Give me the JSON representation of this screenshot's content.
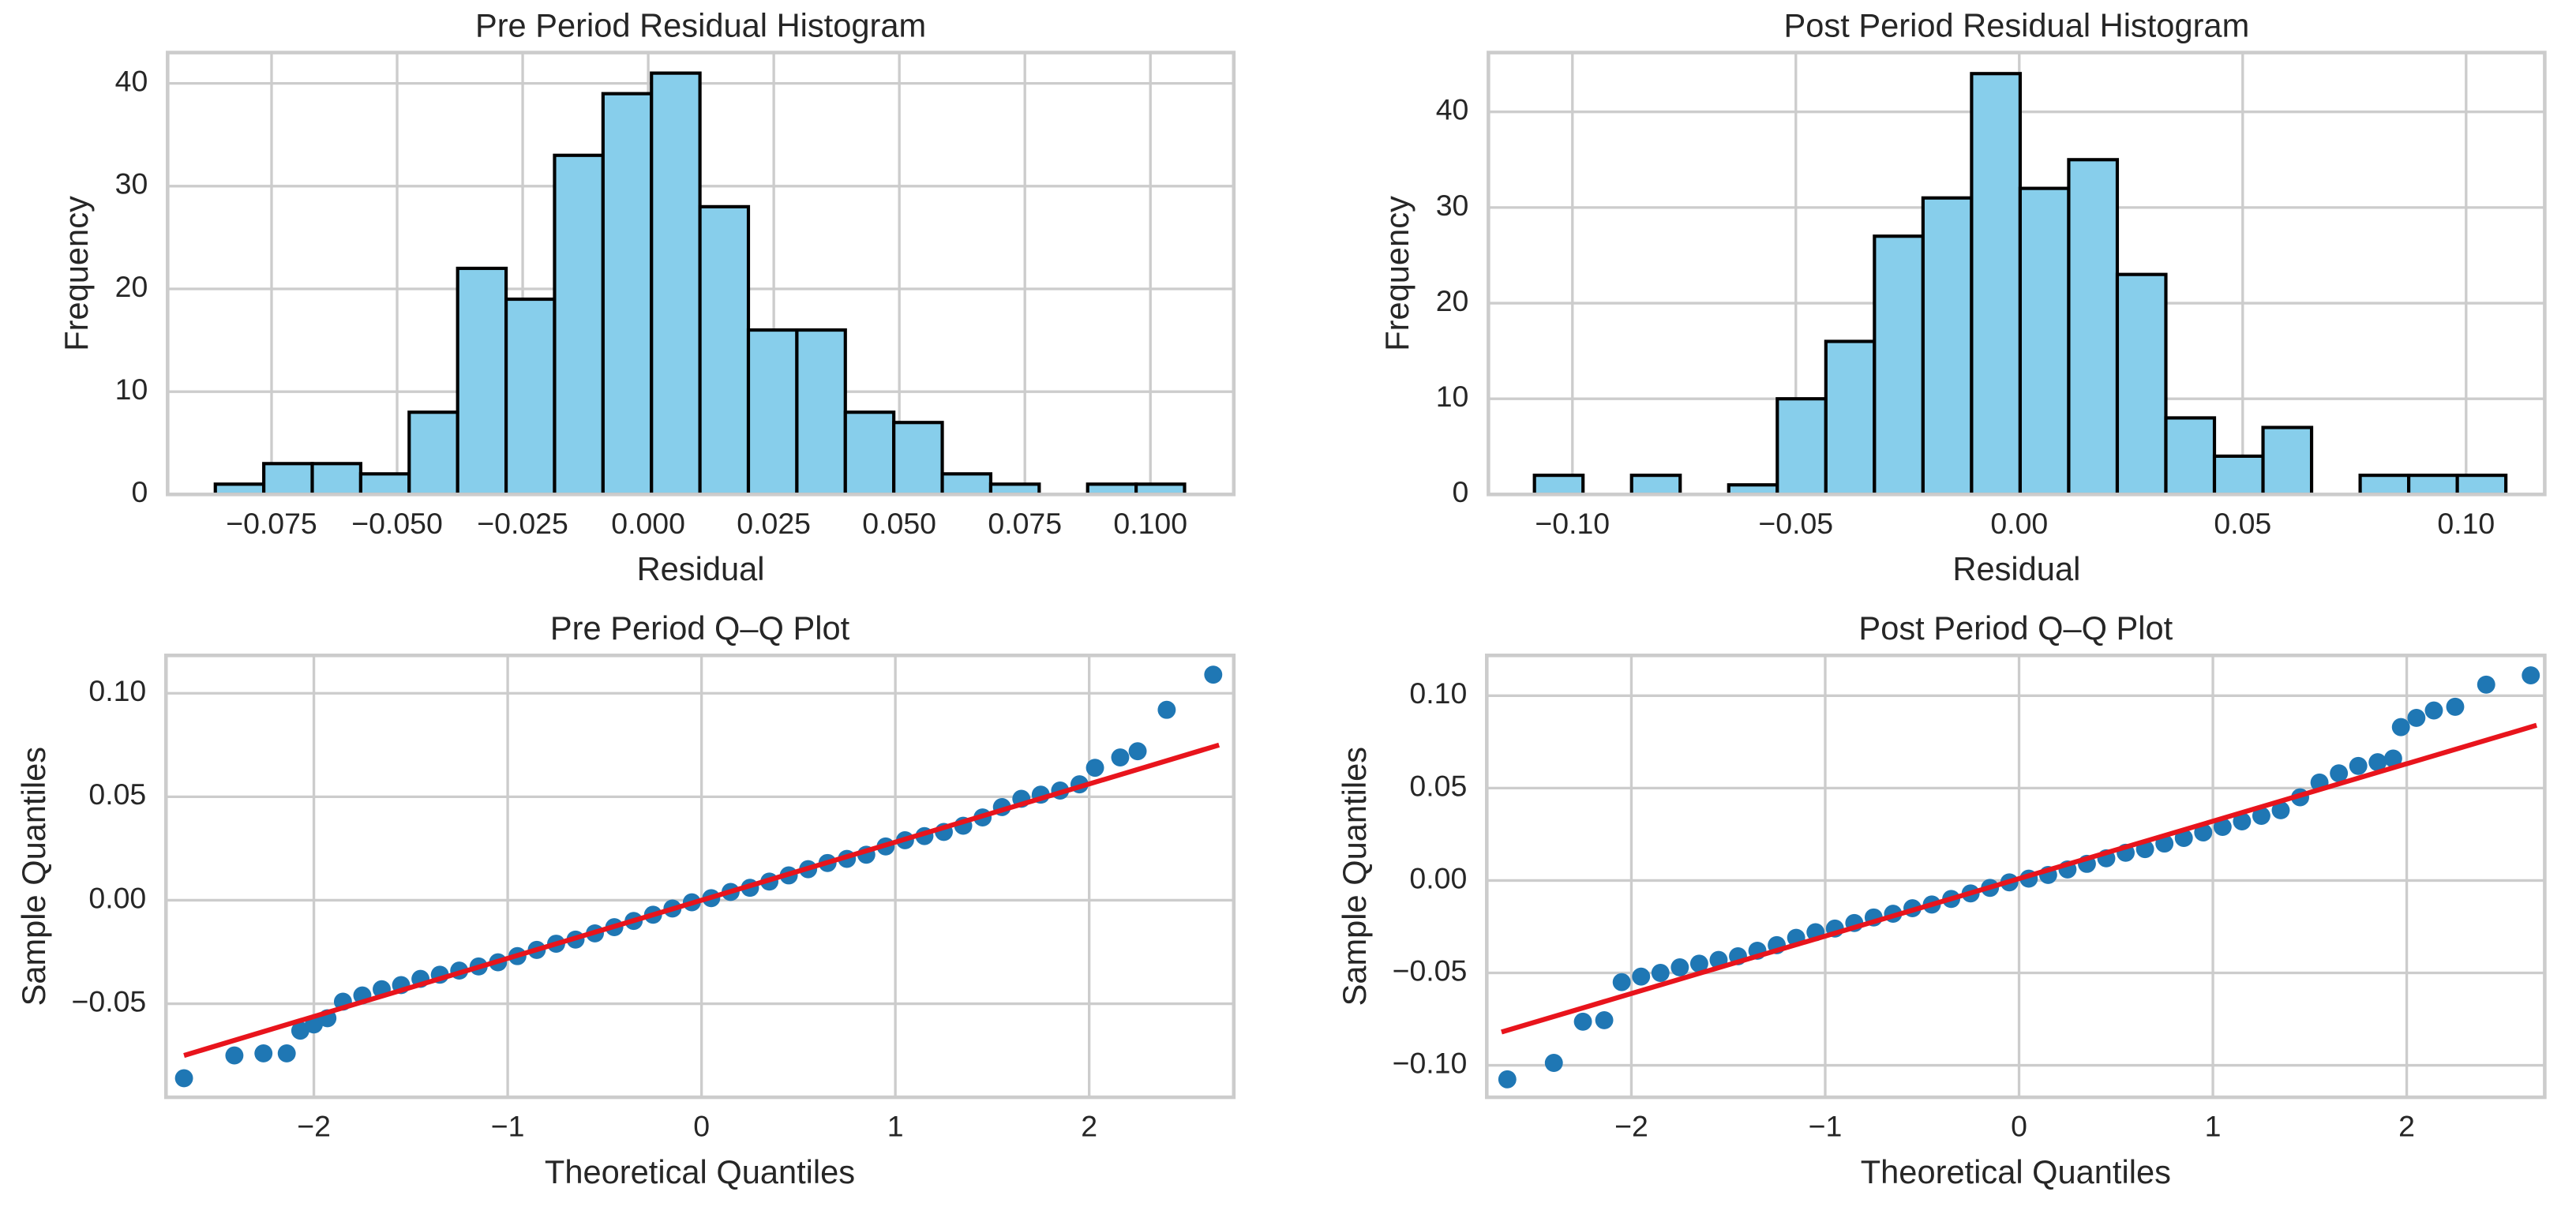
{
  "chart_data": [
    {
      "type": "histogram",
      "title": "Pre Period Residual Histogram",
      "x_label": "Residual",
      "y_label": "Frequency",
      "color": "#87ceeb",
      "edgecolor": "#000000",
      "bins": [
        -0.0862,
        -0.07655,
        -0.0669,
        -0.05725,
        -0.0476,
        -0.03795,
        -0.0283,
        -0.01865,
        -0.009,
        0.00065,
        0.0103,
        0.01995,
        0.0296,
        0.03925,
        0.0489,
        0.05855,
        0.0682,
        0.07785,
        0.0875,
        0.09715,
        0.1068
      ],
      "values": [
        1,
        3,
        3,
        2,
        8,
        22,
        19,
        33,
        39,
        41,
        28,
        16,
        16,
        8,
        7,
        2,
        1,
        0,
        1,
        1
      ],
      "xlim": [
        -0.0957,
        0.1166
      ],
      "ylim": [
        0,
        43
      ],
      "xticks": [
        {
          "value": -0.075,
          "label": "−0.075"
        },
        {
          "value": -0.05,
          "label": "−0.050"
        },
        {
          "value": -0.025,
          "label": "−0.025"
        },
        {
          "value": 0,
          "label": "0.000"
        },
        {
          "value": 0.025,
          "label": "0.025"
        },
        {
          "value": 0.05,
          "label": "0.050"
        },
        {
          "value": 0.075,
          "label": "0.075"
        },
        {
          "value": 0.1,
          "label": "0.100"
        }
      ],
      "yticks": [
        0,
        10,
        20,
        30,
        40
      ],
      "grid": true
    },
    {
      "type": "histogram",
      "title": "Post Period Residual Histogram",
      "x_label": "Residual",
      "y_label": "Frequency",
      "color": "#87ceeb",
      "edgecolor": "#000000",
      "bins": [
        -0.1085,
        -0.09763,
        -0.08676,
        -0.07589,
        -0.06502,
        -0.05415,
        -0.04328,
        -0.03241,
        -0.02154,
        -0.01067,
        0.0002,
        0.01107,
        0.02194,
        0.03281,
        0.04368,
        0.05455,
        0.06542,
        0.07629,
        0.08716,
        0.09803,
        0.1089
      ],
      "values": [
        2,
        0,
        2,
        0,
        1,
        10,
        16,
        27,
        31,
        44,
        32,
        35,
        23,
        8,
        4,
        7,
        0,
        2,
        2,
        2
      ],
      "xlim": [
        -0.1188,
        0.1176
      ],
      "ylim": [
        0,
        46.2
      ],
      "xticks": [
        {
          "value": -0.1,
          "label": "−0.10"
        },
        {
          "value": -0.05,
          "label": "−0.05"
        },
        {
          "value": 0,
          "label": "0.00"
        },
        {
          "value": 0.05,
          "label": "0.05"
        },
        {
          "value": 0.1,
          "label": "0.10"
        }
      ],
      "yticks": [
        0,
        10,
        20,
        30,
        40
      ],
      "grid": true
    },
    {
      "type": "scatter",
      "title": "Pre Period Q–Q Plot",
      "x_label": "Theoretical Quantiles",
      "y_label": "Sample Quantiles",
      "color": "#1f77b4",
      "x": [
        -2.67,
        -2.41,
        -2.26,
        -2.14,
        -2.07,
        -2.0,
        -1.93,
        -1.85,
        -1.75,
        -1.65,
        -1.55,
        -1.45,
        -1.35,
        -1.25,
        -1.15,
        -1.05,
        -0.95,
        -0.85,
        -0.75,
        -0.65,
        -0.55,
        -0.45,
        -0.35,
        -0.25,
        -0.15,
        -0.05,
        0.05,
        0.15,
        0.25,
        0.35,
        0.45,
        0.55,
        0.65,
        0.75,
        0.85,
        0.95,
        1.05,
        1.15,
        1.25,
        1.35,
        1.45,
        1.55,
        1.65,
        1.75,
        1.85,
        1.95,
        2.03,
        2.16,
        2.25,
        2.4,
        2.64
      ],
      "values": [
        -0.086,
        -0.075,
        -0.074,
        -0.074,
        -0.063,
        -0.06,
        -0.057,
        -0.049,
        -0.046,
        -0.043,
        -0.041,
        -0.038,
        -0.036,
        -0.034,
        -0.032,
        -0.03,
        -0.027,
        -0.024,
        -0.021,
        -0.019,
        -0.016,
        -0.013,
        -0.01,
        -0.007,
        -0.004,
        -0.001,
        0.001,
        0.004,
        0.006,
        0.009,
        0.012,
        0.015,
        0.018,
        0.02,
        0.022,
        0.026,
        0.029,
        0.031,
        0.033,
        0.036,
        0.04,
        0.045,
        0.049,
        0.051,
        0.053,
        0.056,
        0.064,
        0.069,
        0.072,
        0.092,
        0.109
      ],
      "line": {
        "x": [
          -2.67,
          2.67
        ],
        "values": [
          -0.075,
          0.075
        ],
        "color": "#e8141c"
      },
      "xlim": [
        -2.763,
        2.746
      ],
      "ylim": [
        -0.0952,
        0.1183
      ],
      "xticks": [
        {
          "value": -2,
          "label": "−2"
        },
        {
          "value": -1,
          "label": "−1"
        },
        0,
        1,
        2
      ],
      "yticks": [
        {
          "value": -0.05,
          "label": "−0.05"
        },
        {
          "value": 0,
          "label": "0.00"
        },
        {
          "value": 0.05,
          "label": "0.05"
        },
        {
          "value": 0.1,
          "label": "0.10"
        }
      ],
      "grid": true
    },
    {
      "type": "scatter",
      "title": "Post Period Q–Q Plot",
      "x_label": "Theoretical Quantiles",
      "y_label": "Sample Quantiles",
      "color": "#1f77b4",
      "x": [
        -2.64,
        -2.4,
        -2.25,
        -2.14,
        -2.05,
        -1.95,
        -1.85,
        -1.75,
        -1.65,
        -1.55,
        -1.45,
        -1.35,
        -1.25,
        -1.15,
        -1.05,
        -0.95,
        -0.85,
        -0.75,
        -0.65,
        -0.55,
        -0.45,
        -0.35,
        -0.25,
        -0.15,
        -0.05,
        0.05,
        0.15,
        0.25,
        0.35,
        0.45,
        0.55,
        0.65,
        0.75,
        0.85,
        0.95,
        1.05,
        1.15,
        1.25,
        1.35,
        1.45,
        1.55,
        1.65,
        1.75,
        1.85,
        1.93,
        1.97,
        2.05,
        2.14,
        2.25,
        2.41,
        2.64
      ],
      "values": [
        -0.1076,
        -0.0987,
        -0.0764,
        -0.0756,
        -0.055,
        -0.052,
        -0.05,
        -0.047,
        -0.045,
        -0.043,
        -0.041,
        -0.038,
        -0.035,
        -0.031,
        -0.028,
        -0.026,
        -0.023,
        -0.02,
        -0.018,
        -0.015,
        -0.013,
        -0.01,
        -0.007,
        -0.004,
        -0.001,
        0.001,
        0.003,
        0.006,
        0.009,
        0.012,
        0.015,
        0.017,
        0.02,
        0.023,
        0.026,
        0.029,
        0.032,
        0.035,
        0.038,
        0.045,
        0.053,
        0.058,
        0.062,
        0.064,
        0.066,
        0.083,
        0.088,
        0.092,
        0.094,
        0.106,
        0.111
      ],
      "line": {
        "x": [
          -2.67,
          2.67
        ],
        "values": [
          -0.082,
          0.084
        ],
        "color": "#e8141c"
      },
      "xlim": [
        -2.746,
        2.712
      ],
      "ylim": [
        -0.1173,
        0.1218
      ],
      "xticks": [
        {
          "value": -2,
          "label": "−2"
        },
        {
          "value": -1,
          "label": "−1"
        },
        0,
        1,
        2
      ],
      "yticks": [
        {
          "value": -0.1,
          "label": "−0.10"
        },
        {
          "value": -0.05,
          "label": "−0.05"
        },
        {
          "value": 0,
          "label": "0.00"
        },
        {
          "value": 0.05,
          "label": "0.05"
        },
        {
          "value": 0.1,
          "label": "0.10"
        }
      ],
      "grid": true
    }
  ]
}
